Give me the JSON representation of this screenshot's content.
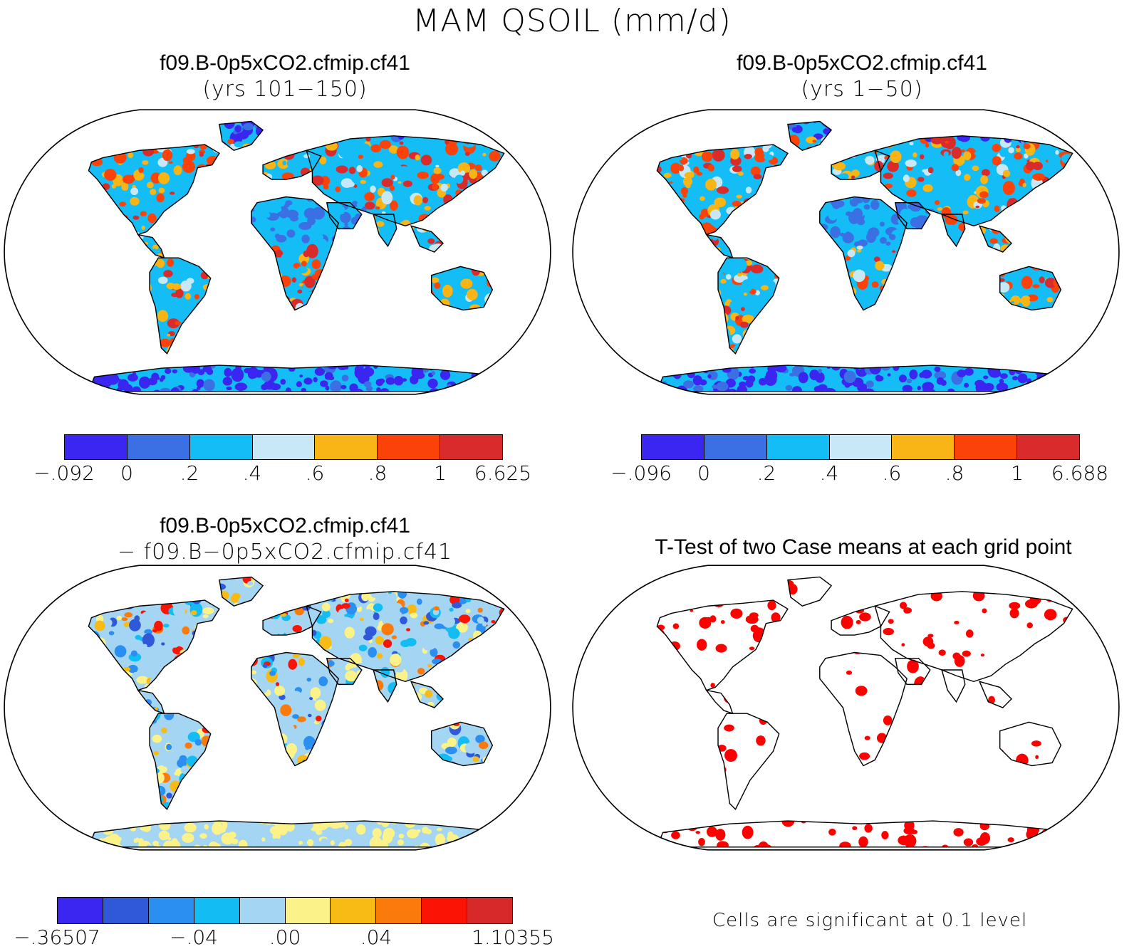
{
  "title": "MAM QSOIL (mm/d)",
  "panels": {
    "top_left": {
      "title_line1": "f09.B-0p5xCO2.cfmip.cf41",
      "title_line2": "(yrs 101−150)",
      "colorbar": {
        "labels": [
          "−.092",
          "0",
          ".2",
          ".4",
          ".6",
          ".8",
          "1",
          "6.625"
        ],
        "colors": [
          "#3a26f0",
          "#3b6fe4",
          "#14bdf5",
          "#c8e8f7",
          "#f9b416",
          "#fb4208",
          "#d92b2b"
        ]
      }
    },
    "top_right": {
      "title_line1": "f09.B-0p5xCO2.cfmip.cf41",
      "title_line2": "(yrs 1−50)",
      "colorbar": {
        "labels": [
          "−.096",
          "0",
          ".2",
          ".4",
          ".6",
          ".8",
          "1",
          "6.688"
        ],
        "colors": [
          "#3a26f0",
          "#3b6fe4",
          "#14bdf5",
          "#c8e8f7",
          "#f9b416",
          "#fb4208",
          "#d92b2b"
        ]
      }
    },
    "bottom_left": {
      "title_line1": "f09.B-0p5xCO2.cfmip.cf41",
      "title_line2": "− f09.B−0p5xCO2.cfmip.cf41",
      "colorbar": {
        "labels": [
          "−.36507",
          "−.04",
          ".00",
          ".04",
          "1.10355"
        ],
        "colors": [
          "#3a26f0",
          "#2f59d8",
          "#2b8ff2",
          "#13bdf3",
          "#a4d5f2",
          "#fcf28a",
          "#f8bb16",
          "#fb7a0c",
          "#fb1405",
          "#d7282a"
        ]
      }
    },
    "bottom_right": {
      "title": "T-Test of two Case means at each grid point",
      "note": "Cells are significant at 0.1 level",
      "significant_color": "#ff0000"
    }
  }
}
